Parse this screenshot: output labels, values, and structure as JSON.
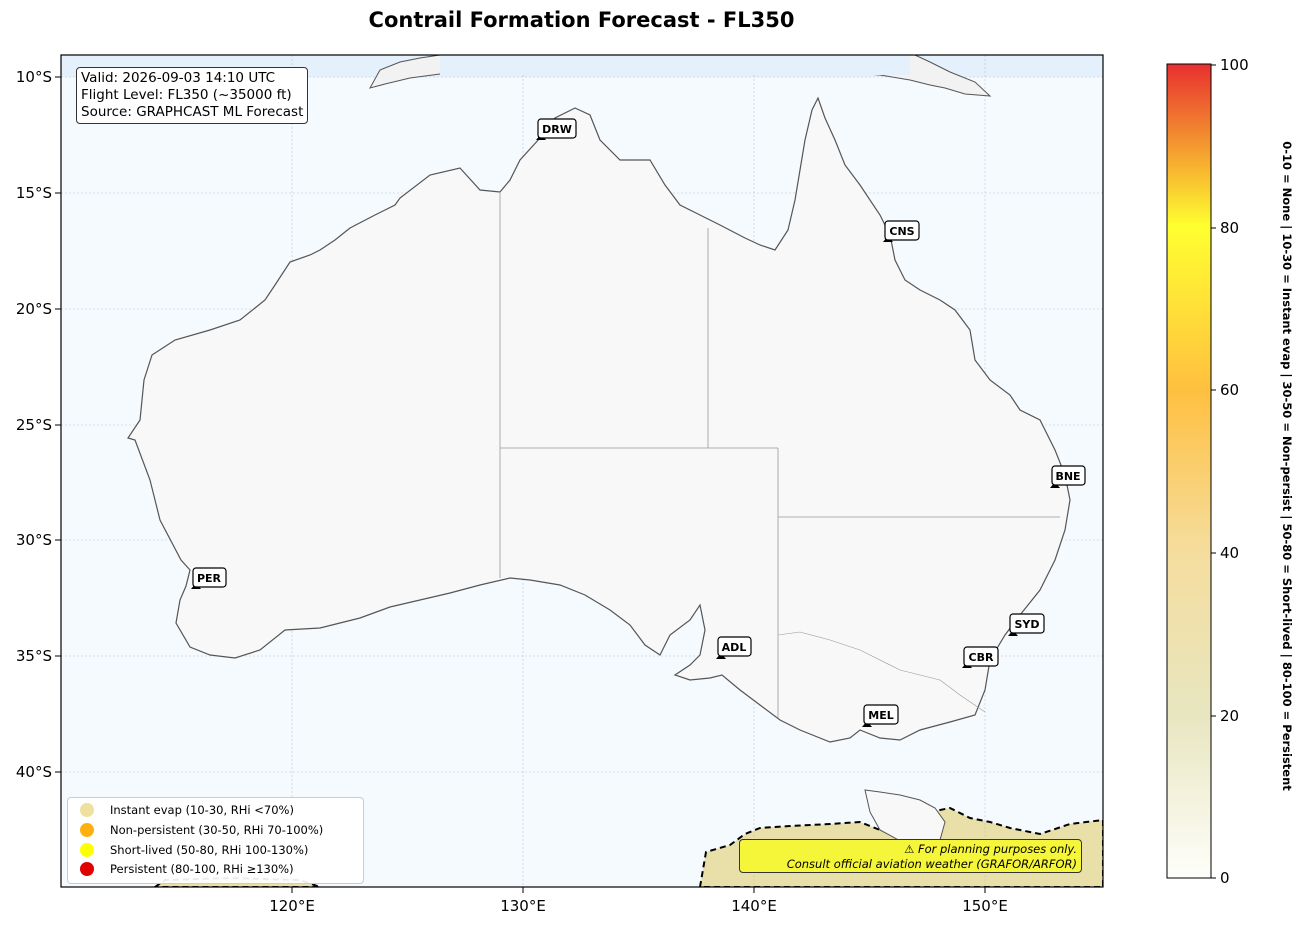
{
  "title": "Contrail Formation Forecast - FL350",
  "info": {
    "valid": "Valid: 2026-09-03 14:10 UTC",
    "flight_level": "Flight Level: FL350 (~35000 ft)",
    "source": "Source: GRAPHCAST ML Forecast"
  },
  "axes": {
    "lat_labels": [
      "10°S",
      "15°S",
      "20°S",
      "25°S",
      "30°S",
      "35°S",
      "40°S"
    ],
    "lon_labels": [
      "120°E",
      "130°E",
      "140°E",
      "150°E"
    ]
  },
  "airports": [
    {
      "code": "DRW"
    },
    {
      "code": "CNS"
    },
    {
      "code": "BNE"
    },
    {
      "code": "PER"
    },
    {
      "code": "SYD"
    },
    {
      "code": "ADL"
    },
    {
      "code": "CBR"
    },
    {
      "code": "MEL"
    }
  ],
  "legend": [
    {
      "label": "Instant evap (10-30, RHi <70%)",
      "color": "#f0e0a0"
    },
    {
      "label": "Non-persistent (30-50, RHi 70-100%)",
      "color": "#ffb010"
    },
    {
      "label": "Short-lived (50-80, RHi 100-130%)",
      "color": "#ffff00"
    },
    {
      "label": "Persistent (80-100, RHi ≥130%)",
      "color": "#e00000"
    }
  ],
  "disclaimer": {
    "line1": "⚠ For planning purposes only.",
    "line2": "Consult official aviation weather (GRAFOR/ARFOR)"
  },
  "colorbar": {
    "ticks": [
      "0",
      "20",
      "40",
      "60",
      "80",
      "100"
    ],
    "label": "0-10 = None  |  10-30 = Instant evap  |  30-50 = Non-persist  |  50-80 = Short-lived  |  80-100 = Persistent",
    "colors": [
      "#fefefa",
      "#e8e6c0",
      "#f5dd9e",
      "#ffc040",
      "#ffff30",
      "#e83030"
    ]
  }
}
